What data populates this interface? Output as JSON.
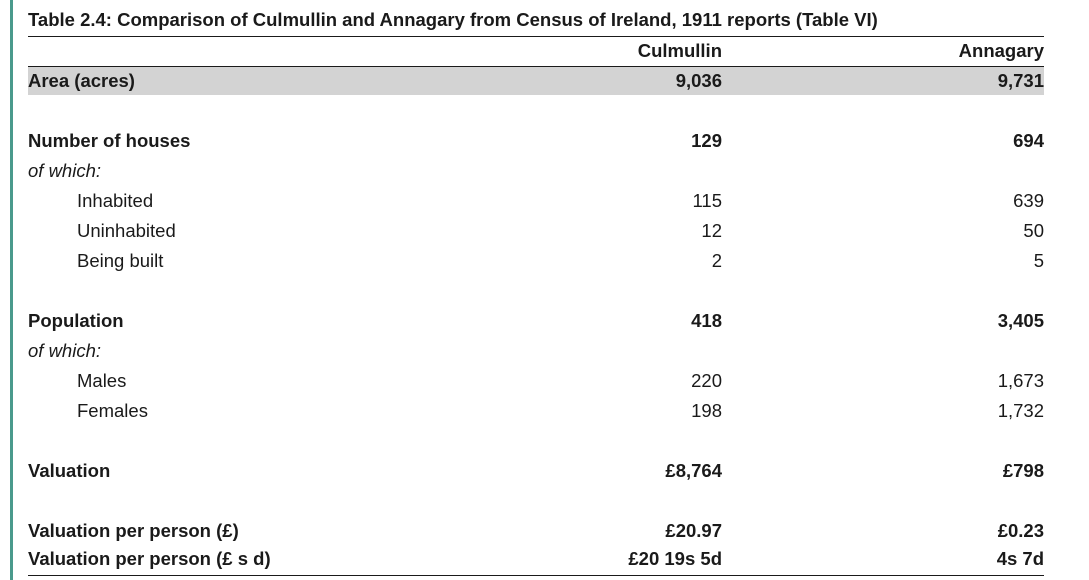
{
  "table": {
    "caption": "Table 2.4: Comparison of Culmullin and Annagary from Census of Ireland, 1911 reports (Table VI)",
    "columns": [
      "Culmullin",
      "Annagary"
    ],
    "rows": [
      {
        "label": "Area (acres)",
        "culmullin": "9,036",
        "annagary": "9,731",
        "style": "bold shaded"
      },
      {
        "label": "Number of houses",
        "culmullin": "129",
        "annagary": "694",
        "style": "bold"
      },
      {
        "label": "of which:",
        "culmullin": "",
        "annagary": "",
        "style": "italic"
      },
      {
        "label": "Inhabited",
        "culmullin": "115",
        "annagary": "639",
        "style": "indent"
      },
      {
        "label": "Uninhabited",
        "culmullin": "12",
        "annagary": "50",
        "style": "indent"
      },
      {
        "label": "Being built",
        "culmullin": "2",
        "annagary": "5",
        "style": "indent"
      },
      {
        "label": "Population",
        "culmullin": "418",
        "annagary": "3,405",
        "style": "bold"
      },
      {
        "label": "of which:",
        "culmullin": "",
        "annagary": "",
        "style": "italic"
      },
      {
        "label": "Males",
        "culmullin": "220",
        "annagary": "1,673",
        "style": "indent"
      },
      {
        "label": "Females",
        "culmullin": "198",
        "annagary": "1,732",
        "style": "indent"
      },
      {
        "label": "Valuation",
        "culmullin": "£8,764",
        "annagary": "£798",
        "style": "bold"
      },
      {
        "label": "Valuation per person (£)",
        "culmullin": "£20.97",
        "annagary": "£0.23",
        "style": "bold"
      },
      {
        "label": "Valuation per person (£ s d)",
        "culmullin": "£20 19s 5d",
        "annagary": "4s 7d",
        "style": "bold"
      }
    ]
  }
}
